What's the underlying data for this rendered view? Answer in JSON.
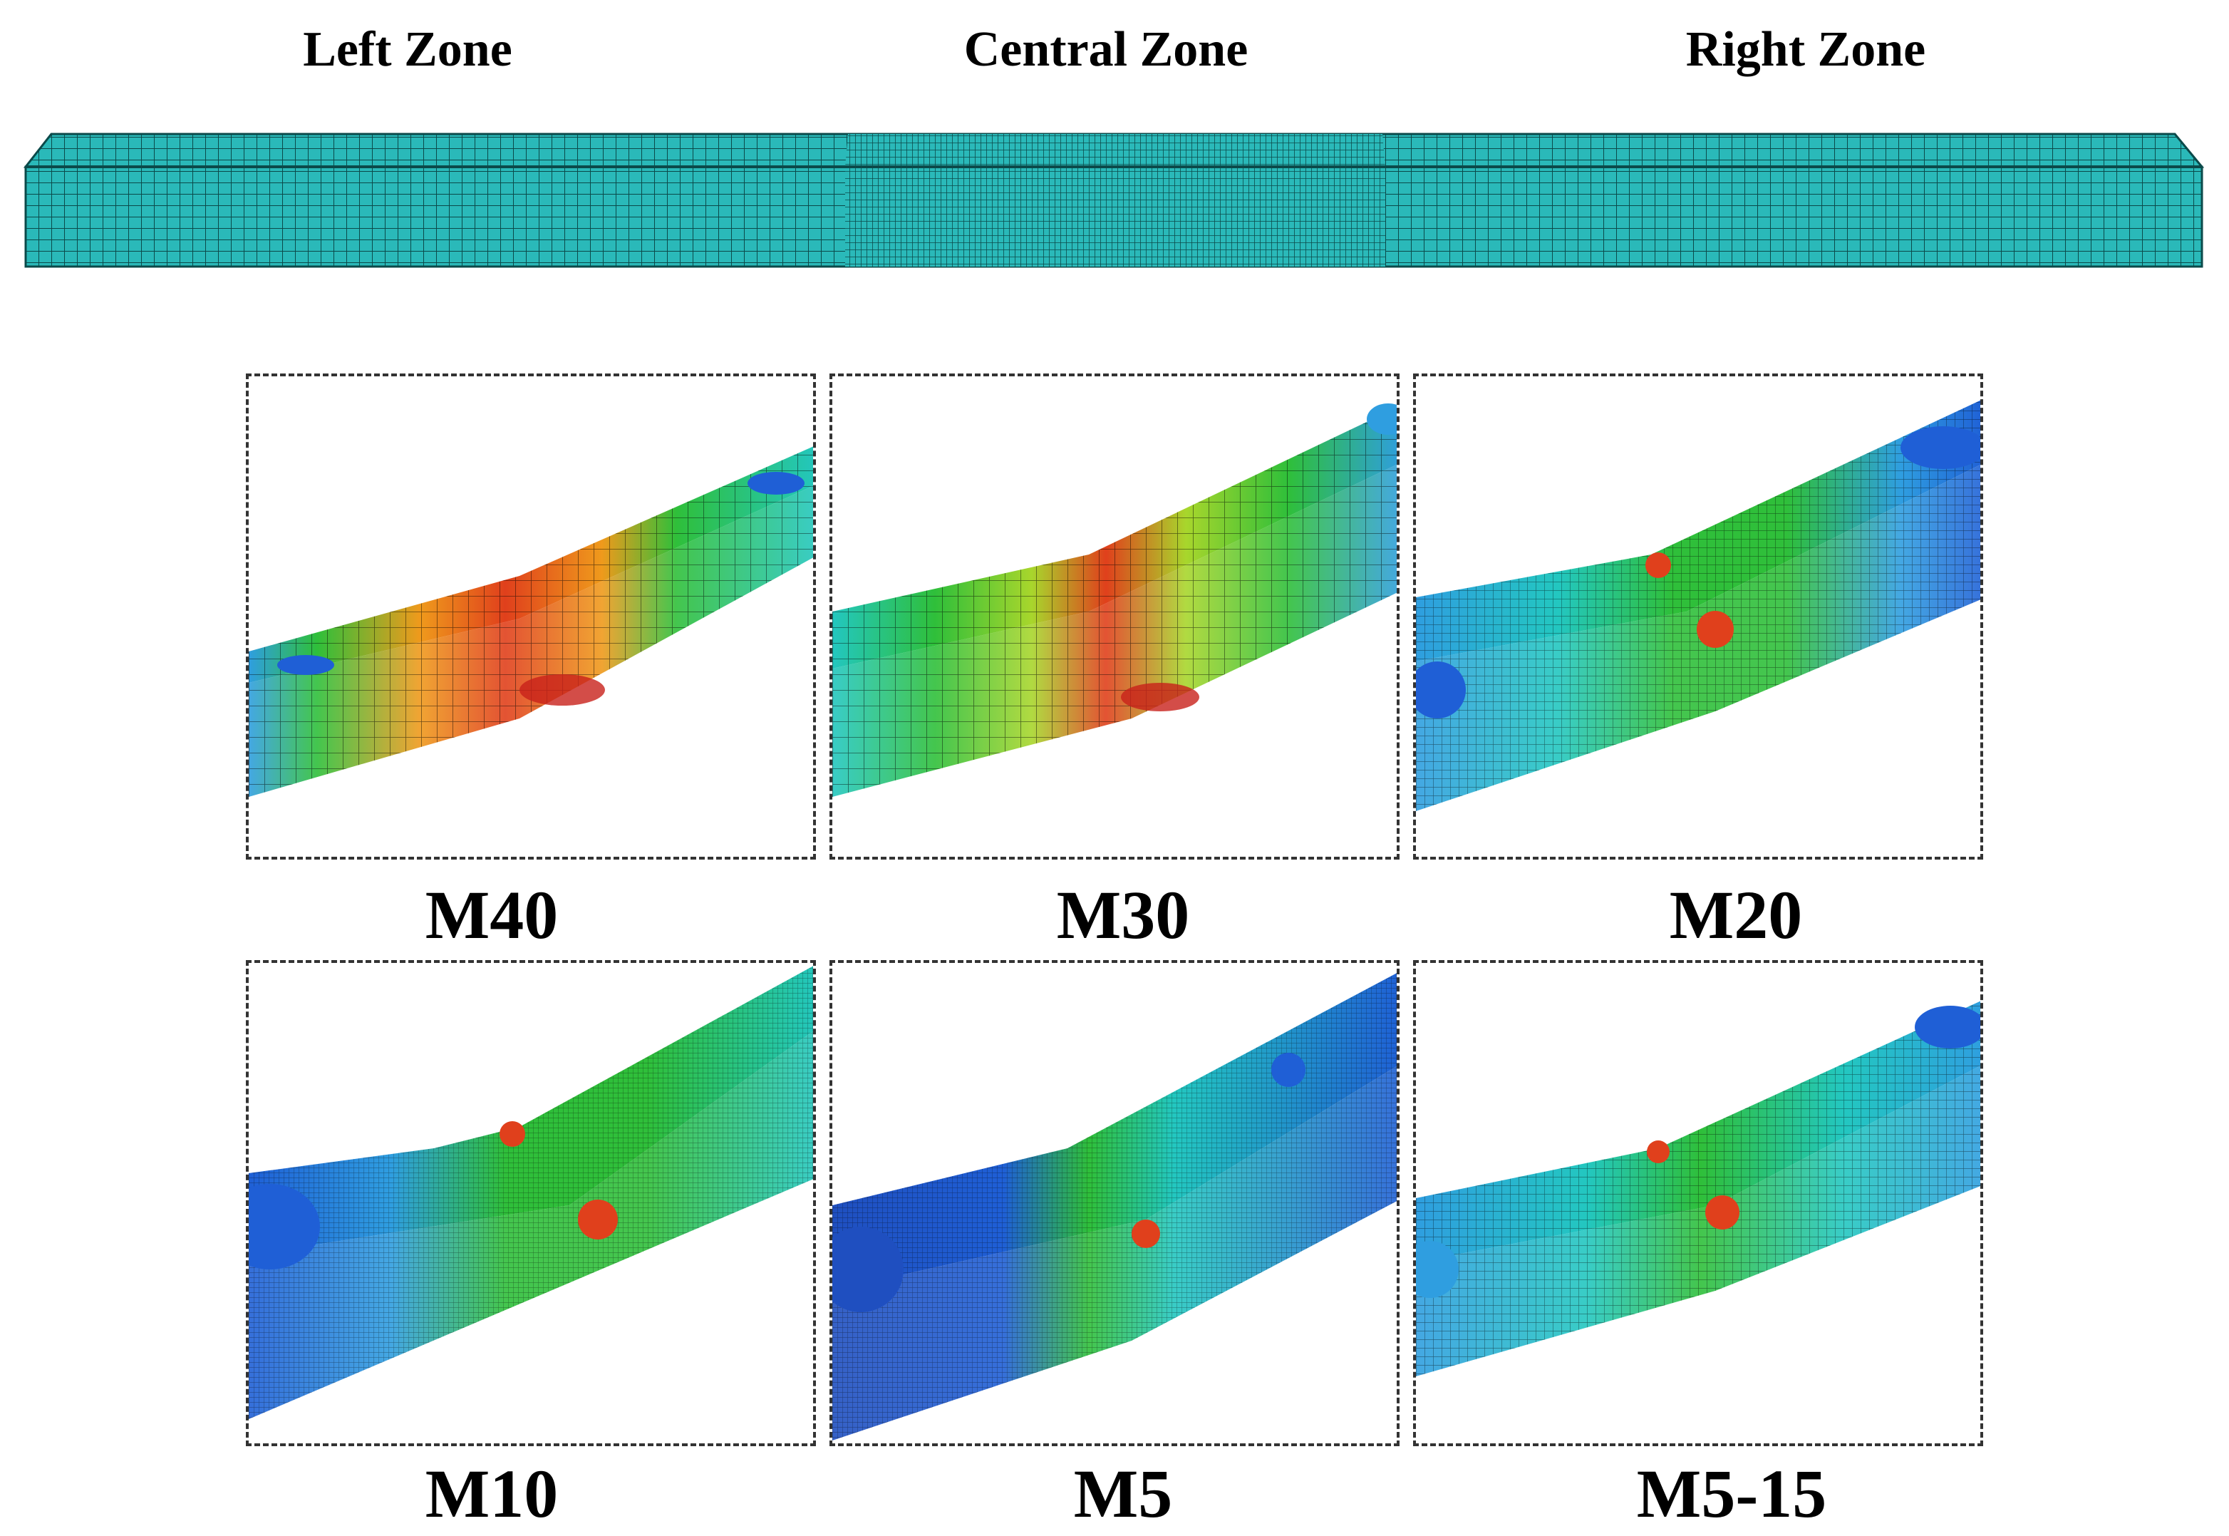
{
  "zones": {
    "left": "Left Zone",
    "central": "Central Zone",
    "right": "Right Zone"
  },
  "beam": {
    "color": "#2ab9b9",
    "mesh_color": "#0b4a4a"
  },
  "panels": [
    {
      "label": "M40"
    },
    {
      "label": "M30"
    },
    {
      "label": "M20"
    },
    {
      "label": "M10"
    },
    {
      "label": "M5"
    },
    {
      "label": "M5-15"
    }
  ],
  "contour_colors": {
    "blue": "#1f5fd6",
    "light_blue": "#2f9ee0",
    "cyan": "#23c7c0",
    "green": "#2fbf3a",
    "yellow_green": "#a8d62c",
    "orange": "#ef9a1c",
    "red": "#e0401c"
  }
}
